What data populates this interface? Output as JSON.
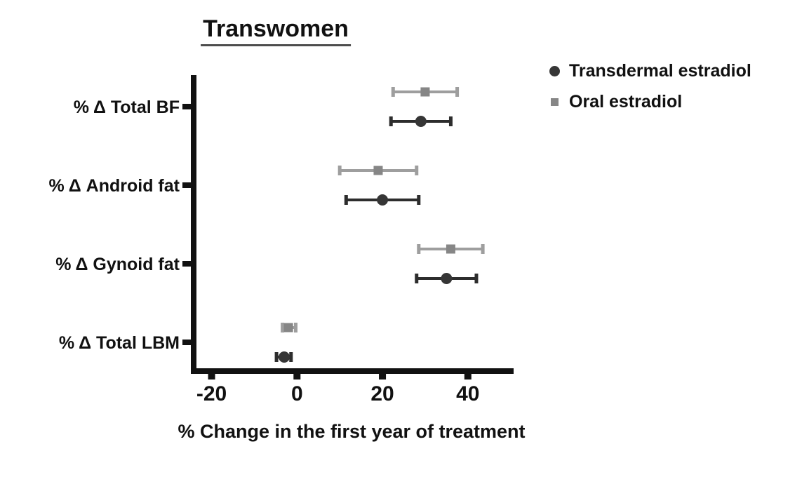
{
  "page": {
    "background": "#ffffff",
    "text_color": "#111111",
    "axis_color": "#111111"
  },
  "chart_data": {
    "type": "scatter",
    "subtype": "forest-dot-plot-with-error-bars",
    "title": "Transwomen",
    "xlabel": "% Change in the first year of treatment",
    "ylabel": "",
    "categories": [
      "% Δ Total BF",
      "% Δ Android fat",
      "% Δ Gynoid fat",
      "% Δ Total LBM"
    ],
    "x_ticks": [
      -20,
      0,
      20,
      40
    ],
    "xlim": [
      -25,
      50.5
    ],
    "grid": false,
    "legend_position": "top-right",
    "series": [
      {
        "name": "Transdermal estradiol",
        "marker": "circle",
        "marker_color": "#363636",
        "line_color": "#2d2d2d",
        "pair_row": "lower",
        "points": [
          {
            "category": "% Δ Total BF",
            "value": 29,
            "ci_low": 22,
            "ci_high": 36
          },
          {
            "category": "% Δ Android fat",
            "value": 20,
            "ci_low": 11.5,
            "ci_high": 28.5
          },
          {
            "category": "% Δ Gynoid fat",
            "value": 35,
            "ci_low": 28,
            "ci_high": 42
          },
          {
            "category": "% Δ Total LBM",
            "value": -3,
            "ci_low": -4.8,
            "ci_high": -1.4
          }
        ]
      },
      {
        "name": "Oral estradiol",
        "marker": "square",
        "marker_color": "#868686",
        "line_color": "#9e9e9e",
        "pair_row": "upper",
        "points": [
          {
            "category": "% Δ Total BF",
            "value": 30,
            "ci_low": 22.5,
            "ci_high": 37.5
          },
          {
            "category": "% Δ Android fat",
            "value": 19,
            "ci_low": 10,
            "ci_high": 28
          },
          {
            "category": "% Δ Gynoid fat",
            "value": 36,
            "ci_low": 28.5,
            "ci_high": 43.5
          },
          {
            "category": "% Δ Total LBM",
            "value": -2,
            "ci_low": -3.4,
            "ci_high": -0.3
          }
        ]
      }
    ]
  }
}
